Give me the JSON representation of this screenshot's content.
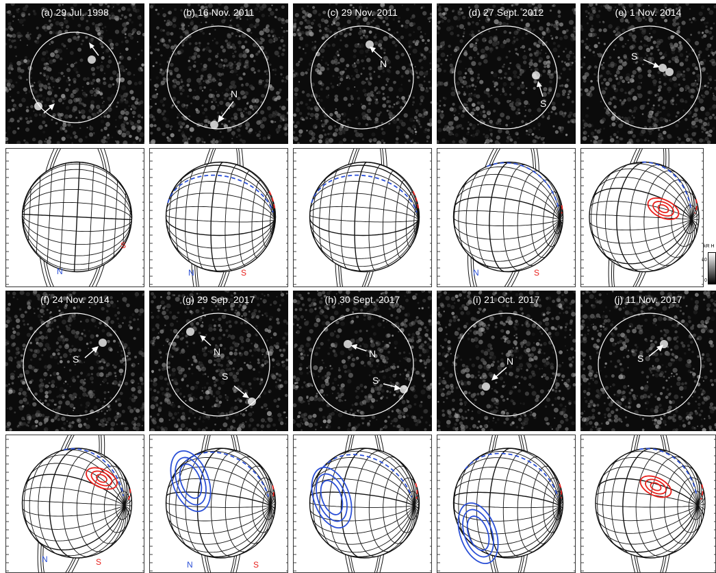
{
  "colors": {
    "north": "#2a4fd6",
    "south": "#e8211c",
    "grid": "#111111",
    "circle": "#ffffff"
  },
  "panels": [
    {
      "title": "(a) 29 Jul. 1998",
      "globe_labels": [
        "N",
        "S"
      ]
    },
    {
      "title": "(b) 16 Nov. 2011",
      "obs_labels": [
        "N"
      ],
      "globe_labels": [
        "N",
        "S"
      ]
    },
    {
      "title": "(c) 29 Nov. 2011",
      "obs_labels": [
        "N"
      ]
    },
    {
      "title": "(d) 27 Sept. 2012",
      "obs_labels": [
        "S"
      ],
      "globe_labels": [
        "N",
        "S"
      ]
    },
    {
      "title": "(e) 1 Nov. 2014",
      "obs_labels": [
        "S"
      ]
    },
    {
      "title": "(f) 24 Nov. 2014",
      "obs_labels": [
        "S"
      ],
      "globe_labels": [
        "N",
        "S"
      ]
    },
    {
      "title": "(g) 29 Sep. 2017",
      "obs_labels": [
        "N",
        "S"
      ],
      "globe_labels": [
        "N",
        "S"
      ]
    },
    {
      "title": "(h) 30 Sept. 2017",
      "obs_labels": [
        "N",
        "S"
      ]
    },
    {
      "title": "(i) 21 Oct. 2017",
      "obs_labels": [
        "N"
      ]
    },
    {
      "title": "(j) 11 Nov. 2017",
      "obs_labels": [
        "S"
      ]
    }
  ],
  "colorbar": {
    "label": "kR H",
    "ticks": [
      "10",
      "0"
    ]
  }
}
